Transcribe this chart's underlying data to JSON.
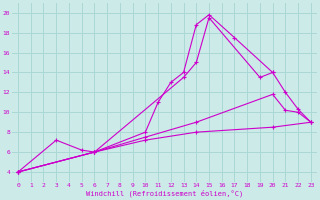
{
  "xlabel": "Windchill (Refroidissement éolien,°C)",
  "background_color": "#cceae7",
  "grid_color": "#aad8d5",
  "line_color": "#cc00cc",
  "xlim": [
    -0.5,
    23.5
  ],
  "ylim": [
    3.0,
    21.0
  ],
  "xticks": [
    0,
    1,
    2,
    3,
    4,
    5,
    6,
    7,
    8,
    9,
    10,
    11,
    12,
    13,
    14,
    15,
    16,
    17,
    18,
    19,
    20,
    21,
    22,
    23
  ],
  "yticks": [
    4,
    6,
    8,
    10,
    12,
    14,
    16,
    18,
    20
  ],
  "series1_x": [
    0,
    3,
    5,
    6,
    13,
    14,
    15,
    19,
    20
  ],
  "series1_y": [
    4,
    7.2,
    6.2,
    6.0,
    13.5,
    15.0,
    19.5,
    13.5,
    14.0
  ],
  "series2_x": [
    0,
    6,
    10,
    11,
    12,
    13,
    14,
    15,
    17,
    20,
    21,
    22,
    23
  ],
  "series2_y": [
    4,
    6.0,
    8.0,
    11.0,
    13.0,
    14.0,
    18.8,
    19.8,
    17.5,
    14.0,
    12.0,
    10.3,
    9.0
  ],
  "series3_x": [
    0,
    6,
    10,
    14,
    20,
    23
  ],
  "series3_y": [
    4.0,
    6.0,
    7.2,
    8.0,
    8.5,
    9.0
  ],
  "series4_x": [
    0,
    6,
    10,
    14,
    20,
    21,
    22,
    23
  ],
  "series4_y": [
    4.0,
    6.0,
    7.5,
    9.0,
    11.8,
    10.2,
    10.0,
    9.0
  ]
}
